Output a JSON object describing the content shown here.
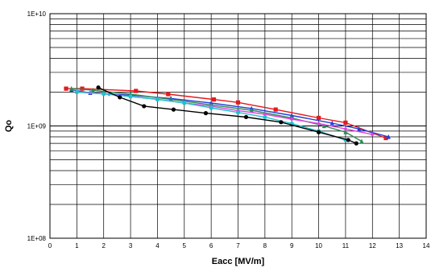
{
  "chart_data": {
    "type": "line",
    "title": "",
    "xlabel": "Eacc [MV/m]",
    "ylabel": "Qo",
    "xlim": [
      0,
      14
    ],
    "ylim": [
      100000000,
      10000000000
    ],
    "y_scale": "log",
    "grid": true,
    "x_ticks": [
      "0",
      "1",
      "2",
      "3",
      "4",
      "5",
      "6",
      "7",
      "8",
      "9",
      "10",
      "11",
      "12",
      "13",
      "14"
    ],
    "y_ticks": [
      {
        "value": 100000000,
        "label": "1E+08"
      },
      {
        "value": 1000000000,
        "label": "1E+09"
      },
      {
        "value": 10000000000,
        "label": "1E+10"
      }
    ],
    "series": [
      {
        "color": "#e41a1c",
        "marker": "square",
        "x": [
          0.6,
          1.2,
          3.2,
          4.4,
          6.1,
          7.0,
          8.4,
          10.0,
          11.0,
          12.5
        ],
        "y": [
          2150000000,
          2150000000,
          2050000000,
          1920000000,
          1720000000,
          1620000000,
          1400000000,
          1180000000,
          1070000000,
          780000000
        ]
      },
      {
        "color": "#1f3fd6",
        "marker": "triangle",
        "x": [
          0.8,
          1.5,
          3.0,
          4.5,
          6.0,
          7.5,
          9.0,
          10.5,
          11.5,
          12.6
        ],
        "y": [
          2100000000,
          1970000000,
          1880000000,
          1760000000,
          1600000000,
          1430000000,
          1240000000,
          1060000000,
          940000000,
          800000000
        ]
      },
      {
        "color": "#2e8b57",
        "marker": "triangle",
        "x": [
          0.8,
          1.6,
          3.0,
          4.5,
          6.0,
          7.5,
          9.0,
          10.2,
          11.0,
          11.6
        ],
        "y": [
          2150000000,
          2080000000,
          1920000000,
          1720000000,
          1540000000,
          1380000000,
          1180000000,
          1000000000,
          880000000,
          730000000
        ]
      },
      {
        "color": "#e040e0",
        "marker": "diamond",
        "x": [
          1.0,
          1.5,
          2.2,
          3.0,
          4.0,
          5.0,
          6.0,
          7.0,
          8.0,
          9.0,
          10.0,
          11.0,
          12.0
        ],
        "y": [
          2020000000,
          1980000000,
          1920000000,
          1830000000,
          1730000000,
          1600000000,
          1500000000,
          1370000000,
          1270000000,
          1150000000,
          1050000000,
          940000000,
          840000000
        ]
      },
      {
        "color": "#20c0d0",
        "marker": "circle",
        "x": [
          1.0,
          2.0,
          3.0,
          4.0,
          5.0,
          6.0,
          7.0,
          8.0,
          9.0,
          10.0,
          11.0
        ],
        "y": [
          2000000000,
          1930000000,
          1830000000,
          1720000000,
          1600000000,
          1450000000,
          1320000000,
          1200000000,
          1050000000,
          900000000,
          750000000
        ]
      },
      {
        "color": "#000000",
        "marker": "circle",
        "x": [
          1.8,
          2.6,
          3.5,
          4.6,
          5.8,
          7.3,
          8.6,
          10.0,
          11.1,
          11.4
        ],
        "y": [
          2200000000,
          1800000000,
          1500000000,
          1400000000,
          1300000000,
          1200000000,
          1080000000,
          880000000,
          750000000,
          700000000
        ]
      }
    ]
  }
}
